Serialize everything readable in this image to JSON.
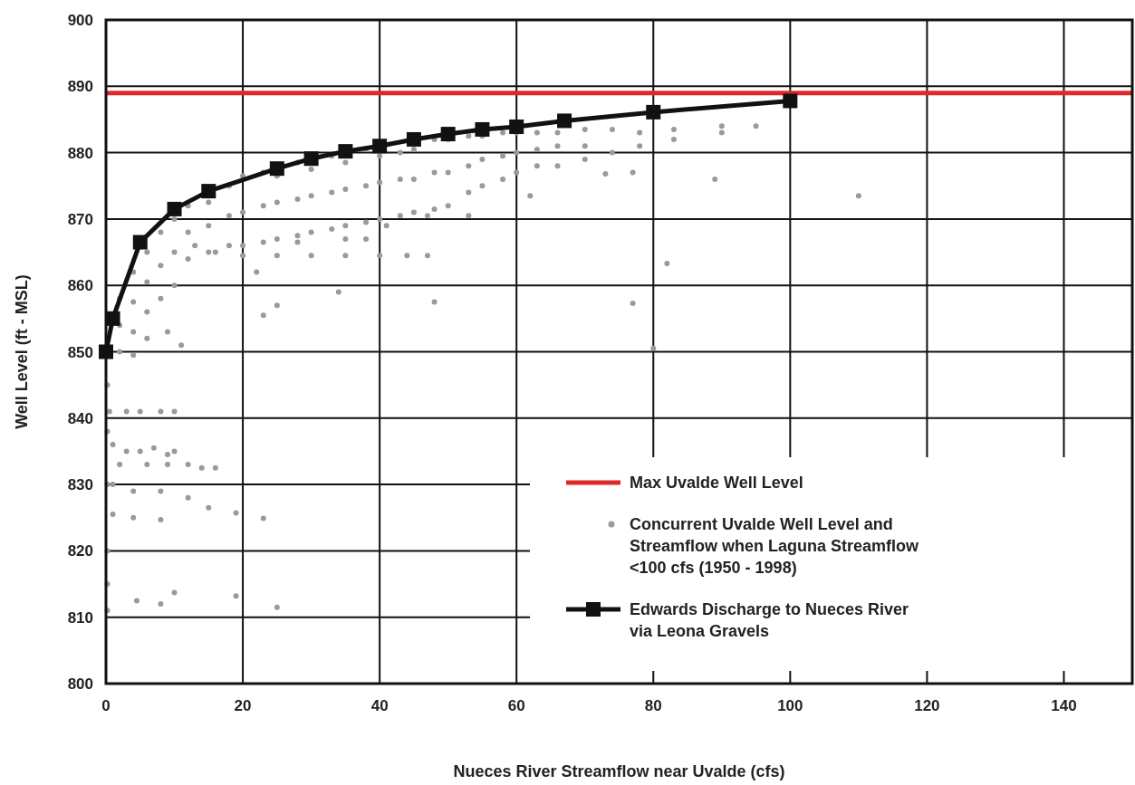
{
  "chart_data": {
    "type": "scatter",
    "xlabel": "Nueces River Streamflow near Uvalde (cfs)",
    "ylabel": "Well Level (ft - MSL)",
    "xlim": [
      0,
      150
    ],
    "xticks": [
      0,
      20,
      40,
      60,
      80,
      100,
      120,
      140
    ],
    "ylim": [
      800,
      900
    ],
    "yticks": [
      800,
      810,
      820,
      830,
      840,
      850,
      860,
      870,
      880,
      890,
      900
    ],
    "grid": true,
    "legend": "bottom right",
    "ref_lines": [
      {
        "axis": "y",
        "value": 889,
        "label": "Max Uvalde Well Level",
        "color": "#e0282a"
      }
    ],
    "series": [
      {
        "name": "Concurrent Uvalde Well Level and Streamflow when Laguna Streamflow <100 cfs (1950 - 1998)",
        "color": "#9a9a9a",
        "marker": "circle",
        "x": [
          2,
          2,
          2,
          4,
          4,
          4,
          6,
          6,
          6,
          8,
          8,
          8,
          10,
          10,
          10,
          12,
          12,
          12,
          15,
          15,
          15,
          18,
          18,
          18,
          20,
          20,
          20,
          23,
          23,
          23,
          25,
          25,
          25,
          28,
          28,
          28,
          30,
          30,
          30,
          33,
          33,
          33,
          35,
          35,
          35,
          38,
          38,
          38,
          40,
          40,
          40,
          43,
          43,
          43,
          45,
          45,
          45,
          48,
          48,
          48,
          50,
          50,
          50,
          53,
          53,
          53,
          55,
          55,
          55,
          58,
          58,
          58,
          60,
          60,
          60,
          63,
          63,
          63,
          66,
          66,
          66,
          70,
          70,
          70,
          74,
          74,
          78,
          78,
          83,
          83,
          90,
          90,
          95,
          13,
          16,
          20,
          25,
          30,
          35,
          40,
          44,
          47,
          28,
          35,
          38,
          22,
          25,
          23,
          34,
          48,
          41,
          47,
          53,
          62,
          73,
          77,
          89,
          110,
          82,
          77,
          80,
          6,
          11,
          4,
          9,
          0.5,
          3,
          5,
          8,
          10,
          1,
          3,
          5,
          7,
          9,
          10,
          2,
          6,
          9,
          12,
          14,
          16,
          1,
          4,
          8,
          12,
          15,
          19,
          23,
          1,
          4,
          8,
          0.2,
          0.2,
          0.2,
          4.5,
          8,
          10,
          19,
          25,
          0.2,
          0.2,
          0.2
        ],
        "values": [
          858,
          854,
          850,
          862,
          857.5,
          853,
          865,
          860.5,
          856,
          868,
          863,
          858,
          870,
          865,
          860,
          872,
          868,
          864,
          872.5,
          869,
          865,
          875,
          870.5,
          866,
          876.5,
          871,
          866,
          877,
          872,
          866.5,
          876.5,
          872.5,
          867,
          878.5,
          873,
          867.5,
          877.5,
          873.5,
          868,
          879.5,
          874,
          868.5,
          878.5,
          874.5,
          869,
          880.5,
          875,
          869.5,
          879.5,
          875.5,
          870,
          880,
          876,
          870.5,
          880.5,
          876,
          871,
          882,
          877,
          871.5,
          882,
          877,
          872,
          882.5,
          878,
          874,
          882.5,
          879,
          875,
          883,
          879.5,
          876,
          883,
          880,
          877,
          883,
          880.5,
          878,
          883,
          881,
          878,
          883.5,
          881,
          879,
          883.5,
          880,
          883,
          881,
          883.5,
          882,
          884,
          883,
          884,
          866,
          865,
          864.5,
          864.5,
          864.5,
          864.5,
          864.5,
          864.5,
          864.5,
          866.5,
          867,
          867,
          862,
          857,
          855.5,
          859,
          857.5,
          869,
          870.5,
          870.5,
          873.5,
          876.8,
          877,
          876,
          873.5,
          863.3,
          857.3,
          850.5,
          852,
          851,
          849.5,
          853,
          841,
          841,
          841,
          841,
          841,
          836,
          835,
          835,
          835.5,
          834.5,
          835,
          833,
          833,
          833,
          833,
          832.5,
          832.5,
          830,
          829,
          829,
          828,
          826.5,
          825.7,
          824.9,
          825.5,
          825,
          824.7,
          820,
          815,
          811,
          812.5,
          812,
          813.7,
          813.2,
          811.5,
          845,
          838,
          830
        ]
      },
      {
        "type": "line",
        "name": "Edwards Discharge to Nueces River via Leona Gravels",
        "color": "#111111",
        "marker": "square",
        "x": [
          0,
          1,
          5,
          10,
          15,
          25,
          30,
          35,
          40,
          45,
          50,
          55,
          60,
          67,
          80,
          100
        ],
        "values": [
          850,
          855,
          866.5,
          871.5,
          874.2,
          877.6,
          879.1,
          880.2,
          881,
          882,
          882.8,
          883.5,
          883.9,
          884.8,
          886.1,
          887.8
        ]
      }
    ]
  }
}
